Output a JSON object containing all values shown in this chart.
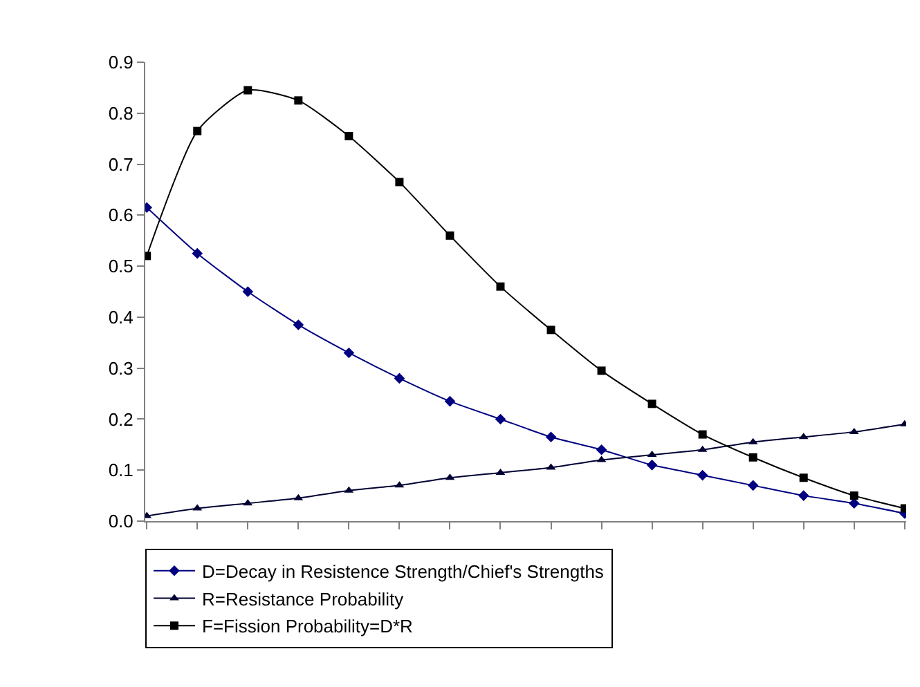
{
  "chart_data": {
    "type": "line",
    "categories": [
      null,
      null,
      null,
      null,
      null,
      null,
      null,
      null,
      null,
      null,
      null,
      null,
      null,
      null,
      null,
      null
    ],
    "series": [
      {
        "name": "D=Decay in Resistence Strength/Chief's Strengths",
        "color": "#000080",
        "marker": "diamond",
        "values": [
          0.615,
          0.525,
          0.45,
          0.385,
          0.33,
          0.28,
          0.235,
          0.2,
          0.165,
          0.14,
          0.11,
          0.09,
          0.07,
          0.05,
          0.035,
          0.015
        ]
      },
      {
        "name": "R=Resistance Probability",
        "color": "#000033",
        "marker": "triangle",
        "values": [
          0.01,
          0.025,
          0.035,
          0.045,
          0.06,
          0.07,
          0.085,
          0.095,
          0.105,
          0.12,
          0.13,
          0.14,
          0.155,
          0.165,
          0.175,
          0.19
        ]
      },
      {
        "name": "F=Fission Probability=D*R",
        "color": "#000000",
        "marker": "square",
        "values": [
          0.52,
          0.765,
          0.845,
          0.825,
          0.755,
          0.665,
          0.56,
          0.46,
          0.375,
          0.295,
          0.23,
          0.17,
          0.125,
          0.085,
          0.05,
          0.025
        ]
      }
    ],
    "ylim": [
      0,
      0.9
    ],
    "yticks": [
      {
        "value": 0,
        "label": "0.0"
      },
      0.1,
      0.2,
      0.3,
      0.4,
      0.5,
      0.6,
      0.7,
      0.8,
      0.9
    ],
    "grid": false,
    "legend": "bottom",
    "line_style": "solid"
  }
}
